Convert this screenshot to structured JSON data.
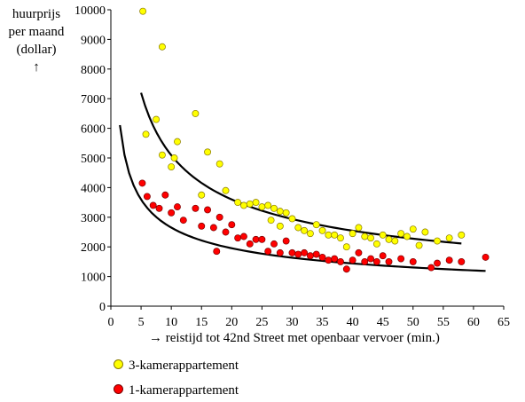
{
  "chart_data": {
    "type": "scatter",
    "ylabel_lines": [
      "huurprijs",
      "per maand",
      "(dollar)",
      "↑"
    ],
    "xlabel": "→  reistijd tot 42nd Street met openbaar vervoer (min.)",
    "xlim": [
      0,
      65
    ],
    "ylim": [
      0,
      10000
    ],
    "xticks": [
      0,
      5,
      10,
      15,
      20,
      25,
      30,
      35,
      40,
      45,
      50,
      55,
      60,
      65
    ],
    "yticks": [
      0,
      1000,
      2000,
      3000,
      4000,
      5000,
      6000,
      7000,
      8000,
      9000,
      10000
    ],
    "grid": false,
    "legend_position": "bottom-left",
    "series": [
      {
        "name": "3-kamerappartement",
        "color": "#ffff00",
        "points": [
          [
            5.3,
            9950
          ],
          [
            8.5,
            8750
          ],
          [
            14,
            6500
          ],
          [
            7.5,
            6300
          ],
          [
            5.8,
            5800
          ],
          [
            11,
            5550
          ],
          [
            16,
            5200
          ],
          [
            8.5,
            5100
          ],
          [
            10.5,
            5000
          ],
          [
            18,
            4800
          ],
          [
            10,
            4700
          ],
          [
            15,
            3750
          ],
          [
            19,
            3900
          ],
          [
            21,
            3500
          ],
          [
            22,
            3400
          ],
          [
            23,
            3450
          ],
          [
            24,
            3500
          ],
          [
            25,
            3350
          ],
          [
            26,
            3400
          ],
          [
            27,
            3300
          ],
          [
            28,
            3200
          ],
          [
            29,
            3150
          ],
          [
            30,
            2950
          ],
          [
            26.5,
            2900
          ],
          [
            28,
            2700
          ],
          [
            32,
            2550
          ],
          [
            31,
            2650
          ],
          [
            33,
            2450
          ],
          [
            34,
            2750
          ],
          [
            35,
            2550
          ],
          [
            36,
            2400
          ],
          [
            37,
            2400
          ],
          [
            38,
            2300
          ],
          [
            39,
            2000
          ],
          [
            40,
            2450
          ],
          [
            41,
            2650
          ],
          [
            42,
            2350
          ],
          [
            43,
            2300
          ],
          [
            44,
            2100
          ],
          [
            45,
            2400
          ],
          [
            46,
            2250
          ],
          [
            47,
            2200
          ],
          [
            48,
            2450
          ],
          [
            49,
            2350
          ],
          [
            50,
            2600
          ],
          [
            51,
            2050
          ],
          [
            52,
            2500
          ],
          [
            54,
            2200
          ],
          [
            56,
            2300
          ],
          [
            58,
            2400
          ]
        ]
      },
      {
        "name": "1-kamerappartement",
        "color": "#ff0000",
        "points": [
          [
            5.2,
            4150
          ],
          [
            6,
            3700
          ],
          [
            7,
            3400
          ],
          [
            8,
            3300
          ],
          [
            9,
            3750
          ],
          [
            10,
            3150
          ],
          [
            11,
            3350
          ],
          [
            12,
            2900
          ],
          [
            14,
            3300
          ],
          [
            15,
            2700
          ],
          [
            16,
            3250
          ],
          [
            17,
            2650
          ],
          [
            17.5,
            1850
          ],
          [
            18,
            3000
          ],
          [
            19,
            2500
          ],
          [
            20,
            2750
          ],
          [
            21,
            2300
          ],
          [
            22,
            2350
          ],
          [
            23,
            2100
          ],
          [
            24,
            2250
          ],
          [
            25,
            2250
          ],
          [
            26,
            1850
          ],
          [
            27,
            2100
          ],
          [
            28,
            1800
          ],
          [
            29,
            2200
          ],
          [
            30,
            1800
          ],
          [
            31,
            1750
          ],
          [
            32,
            1800
          ],
          [
            33,
            1700
          ],
          [
            34,
            1750
          ],
          [
            35,
            1650
          ],
          [
            36,
            1550
          ],
          [
            37,
            1600
          ],
          [
            38,
            1500
          ],
          [
            39,
            1250
          ],
          [
            40,
            1550
          ],
          [
            41,
            1800
          ],
          [
            42,
            1500
          ],
          [
            43,
            1600
          ],
          [
            44,
            1500
          ],
          [
            45,
            1700
          ],
          [
            46,
            1500
          ],
          [
            48,
            1600
          ],
          [
            50,
            1500
          ],
          [
            53,
            1300
          ],
          [
            54,
            1450
          ],
          [
            56,
            1550
          ],
          [
            58,
            1500
          ],
          [
            62,
            1650
          ]
        ]
      }
    ],
    "trendlines": [
      {
        "series": "3-kamerappartement",
        "x_from": 5,
        "x_to": 58,
        "a": 16100,
        "b": -0.5
      },
      {
        "series": "1-kamerappartement",
        "x_from": 1.5,
        "x_to": 62,
        "a": 7300,
        "b": -0.44
      }
    ]
  }
}
